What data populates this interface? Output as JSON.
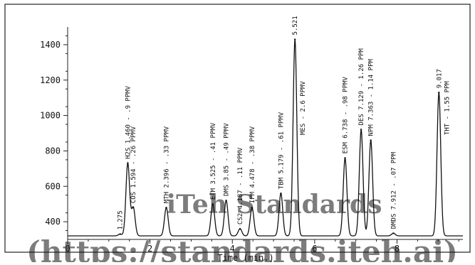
{
  "chart_data": {
    "type": "line",
    "title": "",
    "xlabel": "Time (min.)",
    "ylabel": "",
    "xlim": [
      0,
      9.6
    ],
    "ylim": [
      300,
      1500
    ],
    "baseline": 320,
    "x_ticks": [
      {
        "v": 0,
        "label": "0"
      },
      {
        "v": 2,
        "label": "2"
      },
      {
        "v": 4,
        "label": "4"
      },
      {
        "v": 6,
        "label": "6"
      },
      {
        "v": 8,
        "label": "8"
      }
    ],
    "y_ticks": [
      {
        "v": 400,
        "label": "400"
      },
      {
        "v": 600,
        "label": "600"
      },
      {
        "v": 800,
        "label": "800"
      },
      {
        "v": 1000,
        "label": "1000"
      },
      {
        "v": 1200,
        "label": "1200"
      },
      {
        "v": 1400,
        "label": "1400"
      }
    ],
    "grid": false,
    "peaks": [
      {
        "rt": 1.275,
        "height": 330,
        "label": "1.275"
      },
      {
        "rt": 1.46,
        "height": 730,
        "label": "H2S 1.460 - .9 PPMV"
      },
      {
        "rt": 1.594,
        "height": 480,
        "label": "COS 1.594 - .26 PPMV"
      },
      {
        "rt": 2.396,
        "height": 480,
        "label": "MTH 2.396 - .33 PPMV"
      },
      {
        "rt": 3.525,
        "height": 500,
        "label": "ETM 3.525 - .41 PPMV"
      },
      {
        "rt": 3.85,
        "height": 520,
        "label": "DMS 3.85 - .49 PPMV"
      },
      {
        "rt": 4.187,
        "height": 360,
        "label": "CS2 4.187 - .11 PPMV"
      },
      {
        "rt": 4.478,
        "height": 480,
        "label": "IPM 4.478 - .38 PPMV"
      },
      {
        "rt": 5.179,
        "height": 560,
        "label": "TBM 5.179 - .61 PPMV"
      },
      {
        "rt": 5.521,
        "height": 1430,
        "label": "5.521"
      },
      {
        "rt": 6.738,
        "height": 760,
        "label": "ESM 6.738 - .98 PPMV"
      },
      {
        "rt": 7.129,
        "height": 920,
        "label": "DES 7.129 - 1.26 PPM"
      },
      {
        "rt": 7.363,
        "height": 860,
        "label": "NPM 7.363 - 1.14 PPM"
      },
      {
        "rt": 7.912,
        "height": 335,
        "label": "DMDS 7.912 - .07 PPM"
      },
      {
        "rt": 9.017,
        "height": 1130,
        "label": "9.017"
      }
    ],
    "annotations": [
      {
        "rt": 5.521,
        "text": "MES - 2.6 PPMV"
      },
      {
        "rt": 9.017,
        "text": "THT - 1.55 PPM"
      }
    ]
  },
  "watermark": {
    "line1": "iTeh Standards",
    "line2": "(https://standards.iteh.ai)"
  }
}
